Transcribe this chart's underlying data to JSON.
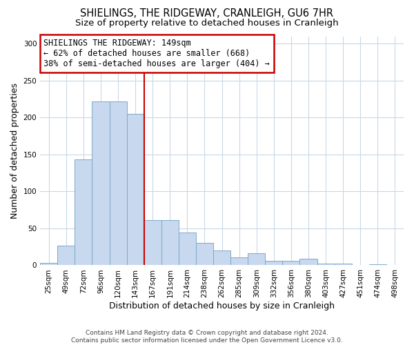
{
  "title": "SHIELINGS, THE RIDGEWAY, CRANLEIGH, GU6 7HR",
  "subtitle": "Size of property relative to detached houses in Cranleigh",
  "xlabel": "Distribution of detached houses by size in Cranleigh",
  "ylabel": "Number of detached properties",
  "footer_line1": "Contains HM Land Registry data © Crown copyright and database right 2024.",
  "footer_line2": "Contains public sector information licensed under the Open Government Licence v3.0.",
  "annotation_line1": "SHIELINGS THE RIDGEWAY: 149sqm",
  "annotation_line2": "← 62% of detached houses are smaller (668)",
  "annotation_line3": "38% of semi-detached houses are larger (404) →",
  "bar_labels": [
    "25sqm",
    "49sqm",
    "72sqm",
    "96sqm",
    "120sqm",
    "143sqm",
    "167sqm",
    "191sqm",
    "214sqm",
    "238sqm",
    "262sqm",
    "285sqm",
    "309sqm",
    "332sqm",
    "356sqm",
    "380sqm",
    "403sqm",
    "427sqm",
    "451sqm",
    "474sqm",
    "498sqm"
  ],
  "bar_values": [
    3,
    27,
    143,
    222,
    222,
    205,
    61,
    61,
    44,
    30,
    20,
    11,
    16,
    6,
    6,
    9,
    2,
    2,
    0,
    1,
    0
  ],
  "bar_color": "#c8d8ee",
  "bar_edge_color": "#7aaac8",
  "vline_color": "#cc0000",
  "ylim": [
    0,
    310
  ],
  "yticks": [
    0,
    50,
    100,
    150,
    200,
    250,
    300
  ],
  "grid_color": "#c8d8e8",
  "background_color": "#ffffff",
  "box_edge_color": "#cc0000",
  "title_fontsize": 10.5,
  "subtitle_fontsize": 9.5,
  "axis_label_fontsize": 9,
  "tick_fontsize": 7.5,
  "annotation_fontsize": 8.5,
  "footer_fontsize": 6.5
}
